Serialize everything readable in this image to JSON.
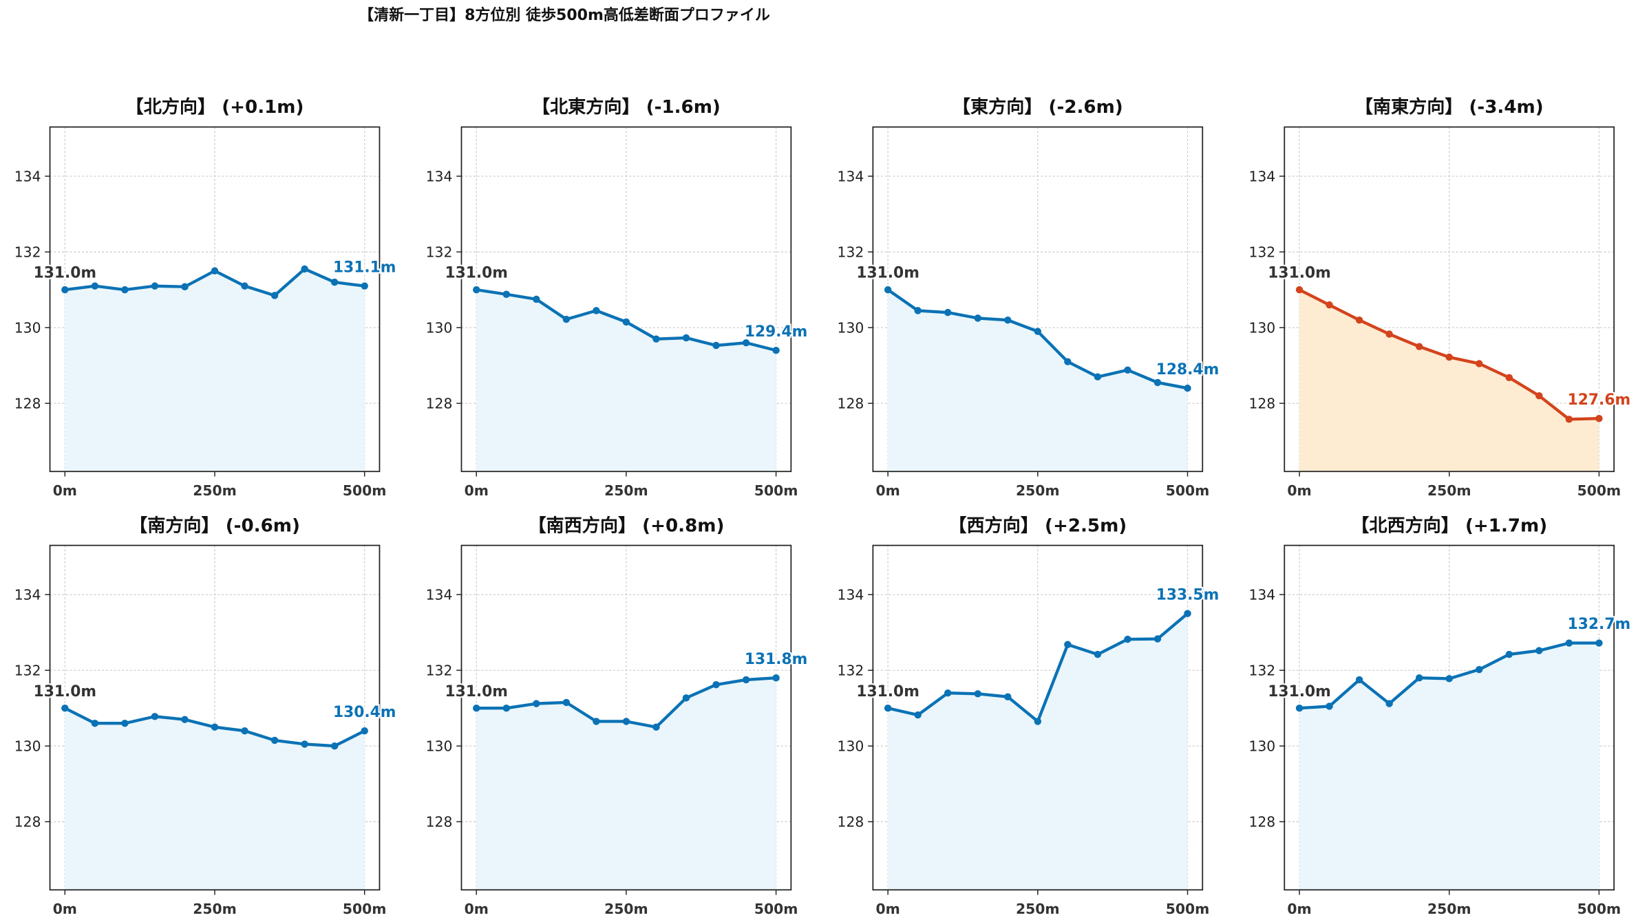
{
  "page": {
    "title": "【清新一丁目】8方位別 徒歩500m高低差断面プロファイル"
  },
  "colors": {
    "default_line": "#0b72b5",
    "default_fill": "#eaf6fb",
    "highlight_line": "#d3431c",
    "highlight_fill": "#fdebd2",
    "start_label": "#333333"
  },
  "chart_data": [
    {
      "type": "area",
      "title": "【北方向】 (+0.1m)",
      "x": [
        0,
        50,
        100,
        150,
        200,
        250,
        300,
        350,
        400,
        450,
        500
      ],
      "y": [
        131.0,
        131.1,
        131.0,
        131.1,
        131.08,
        131.5,
        131.1,
        130.85,
        131.55,
        131.2,
        131.1
      ],
      "xticks": [
        "0m",
        "250m",
        "500m"
      ],
      "yticks": [
        "128",
        "130",
        "132",
        "134"
      ],
      "ylim": [
        126.2,
        135.3
      ],
      "grid": true,
      "start_label": "131.0m",
      "end_label": "131.1m",
      "highlight": false
    },
    {
      "type": "area",
      "title": "【北東方向】 (-1.6m)",
      "x": [
        0,
        50,
        100,
        150,
        200,
        250,
        300,
        350,
        400,
        450,
        500
      ],
      "y": [
        131.0,
        130.88,
        130.75,
        130.22,
        130.45,
        130.15,
        129.7,
        129.73,
        129.53,
        129.6,
        129.4
      ],
      "xticks": [
        "0m",
        "250m",
        "500m"
      ],
      "yticks": [
        "128",
        "130",
        "132",
        "134"
      ],
      "ylim": [
        126.2,
        135.3
      ],
      "grid": true,
      "start_label": "131.0m",
      "end_label": "129.4m",
      "highlight": false
    },
    {
      "type": "area",
      "title": "【東方向】 (-2.6m)",
      "x": [
        0,
        50,
        100,
        150,
        200,
        250,
        300,
        350,
        400,
        450,
        500
      ],
      "y": [
        131.0,
        130.45,
        130.4,
        130.25,
        130.2,
        129.9,
        129.1,
        128.7,
        128.88,
        128.55,
        128.4
      ],
      "xticks": [
        "0m",
        "250m",
        "500m"
      ],
      "yticks": [
        "128",
        "130",
        "132",
        "134"
      ],
      "ylim": [
        126.2,
        135.3
      ],
      "grid": true,
      "start_label": "131.0m",
      "end_label": "128.4m",
      "highlight": false
    },
    {
      "type": "area",
      "title": "【南東方向】 (-3.4m)",
      "x": [
        0,
        50,
        100,
        150,
        200,
        250,
        300,
        350,
        400,
        450,
        500
      ],
      "y": [
        131.0,
        130.6,
        130.2,
        129.83,
        129.5,
        129.22,
        129.05,
        128.68,
        128.2,
        127.58,
        127.6
      ],
      "xticks": [
        "0m",
        "250m",
        "500m"
      ],
      "yticks": [
        "128",
        "130",
        "132",
        "134"
      ],
      "ylim": [
        126.2,
        135.3
      ],
      "grid": true,
      "start_label": "131.0m",
      "end_label": "127.6m",
      "highlight": true
    },
    {
      "type": "area",
      "title": "【南方向】 (-0.6m)",
      "x": [
        0,
        50,
        100,
        150,
        200,
        250,
        300,
        350,
        400,
        450,
        500
      ],
      "y": [
        131.0,
        130.6,
        130.6,
        130.78,
        130.7,
        130.5,
        130.4,
        130.15,
        130.05,
        130.0,
        130.4
      ],
      "xticks": [
        "0m",
        "250m",
        "500m"
      ],
      "yticks": [
        "128",
        "130",
        "132",
        "134"
      ],
      "ylim": [
        126.2,
        135.3
      ],
      "grid": true,
      "start_label": "131.0m",
      "end_label": "130.4m",
      "highlight": false
    },
    {
      "type": "area",
      "title": "【南西方向】 (+0.8m)",
      "x": [
        0,
        50,
        100,
        150,
        200,
        250,
        300,
        350,
        400,
        450,
        500
      ],
      "y": [
        131.0,
        131.0,
        131.12,
        131.15,
        130.65,
        130.65,
        130.5,
        131.27,
        131.62,
        131.75,
        131.8
      ],
      "xticks": [
        "0m",
        "250m",
        "500m"
      ],
      "yticks": [
        "128",
        "130",
        "132",
        "134"
      ],
      "ylim": [
        126.2,
        135.3
      ],
      "grid": true,
      "start_label": "131.0m",
      "end_label": "131.8m",
      "highlight": false
    },
    {
      "type": "area",
      "title": "【西方向】 (+2.5m)",
      "x": [
        0,
        50,
        100,
        150,
        200,
        250,
        300,
        350,
        400,
        450,
        500
      ],
      "y": [
        131.0,
        130.82,
        131.4,
        131.38,
        131.3,
        130.65,
        132.68,
        132.42,
        132.82,
        132.83,
        133.5
      ],
      "xticks": [
        "0m",
        "250m",
        "500m"
      ],
      "yticks": [
        "128",
        "130",
        "132",
        "134"
      ],
      "ylim": [
        126.2,
        135.3
      ],
      "grid": true,
      "start_label": "131.0m",
      "end_label": "133.5m",
      "highlight": false
    },
    {
      "type": "area",
      "title": "【北西方向】 (+1.7m)",
      "x": [
        0,
        50,
        100,
        150,
        200,
        250,
        300,
        350,
        400,
        450,
        500
      ],
      "y": [
        131.0,
        131.05,
        131.75,
        131.12,
        131.8,
        131.78,
        132.02,
        132.42,
        132.52,
        132.72,
        132.72
      ],
      "xticks": [
        "0m",
        "250m",
        "500m"
      ],
      "yticks": [
        "128",
        "130",
        "132",
        "134"
      ],
      "ylim": [
        126.2,
        135.3
      ],
      "grid": true,
      "start_label": "131.0m",
      "end_label": "132.7m",
      "highlight": false
    }
  ]
}
